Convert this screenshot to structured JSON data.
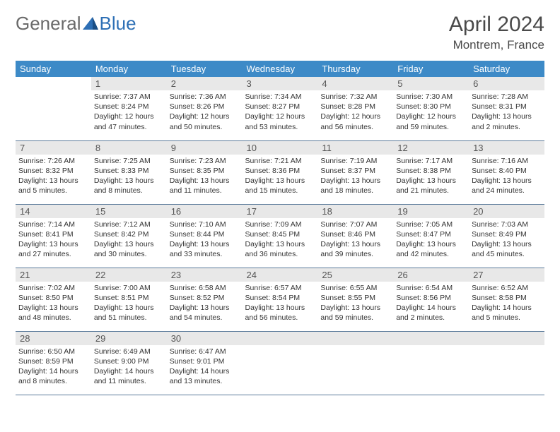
{
  "logo": {
    "part1": "General",
    "part2": "Blue"
  },
  "title": "April 2024",
  "location": "Montrem, France",
  "colors": {
    "header_bg": "#3d8ac7",
    "header_text": "#ffffff",
    "daynum_bg": "#e8e8e8",
    "row_border": "#5a7a9a",
    "text": "#333333",
    "title_color": "#4a4a4a",
    "logo_gray": "#6a6a6a",
    "logo_blue": "#2d6fb5"
  },
  "weekdays": [
    "Sunday",
    "Monday",
    "Tuesday",
    "Wednesday",
    "Thursday",
    "Friday",
    "Saturday"
  ],
  "layout": {
    "first_weekday_index": 1,
    "days_in_month": 30
  },
  "days": {
    "1": {
      "sunrise": "7:37 AM",
      "sunset": "8:24 PM",
      "daylight": "12 hours and 47 minutes."
    },
    "2": {
      "sunrise": "7:36 AM",
      "sunset": "8:26 PM",
      "daylight": "12 hours and 50 minutes."
    },
    "3": {
      "sunrise": "7:34 AM",
      "sunset": "8:27 PM",
      "daylight": "12 hours and 53 minutes."
    },
    "4": {
      "sunrise": "7:32 AM",
      "sunset": "8:28 PM",
      "daylight": "12 hours and 56 minutes."
    },
    "5": {
      "sunrise": "7:30 AM",
      "sunset": "8:30 PM",
      "daylight": "12 hours and 59 minutes."
    },
    "6": {
      "sunrise": "7:28 AM",
      "sunset": "8:31 PM",
      "daylight": "13 hours and 2 minutes."
    },
    "7": {
      "sunrise": "7:26 AM",
      "sunset": "8:32 PM",
      "daylight": "13 hours and 5 minutes."
    },
    "8": {
      "sunrise": "7:25 AM",
      "sunset": "8:33 PM",
      "daylight": "13 hours and 8 minutes."
    },
    "9": {
      "sunrise": "7:23 AM",
      "sunset": "8:35 PM",
      "daylight": "13 hours and 11 minutes."
    },
    "10": {
      "sunrise": "7:21 AM",
      "sunset": "8:36 PM",
      "daylight": "13 hours and 15 minutes."
    },
    "11": {
      "sunrise": "7:19 AM",
      "sunset": "8:37 PM",
      "daylight": "13 hours and 18 minutes."
    },
    "12": {
      "sunrise": "7:17 AM",
      "sunset": "8:38 PM",
      "daylight": "13 hours and 21 minutes."
    },
    "13": {
      "sunrise": "7:16 AM",
      "sunset": "8:40 PM",
      "daylight": "13 hours and 24 minutes."
    },
    "14": {
      "sunrise": "7:14 AM",
      "sunset": "8:41 PM",
      "daylight": "13 hours and 27 minutes."
    },
    "15": {
      "sunrise": "7:12 AM",
      "sunset": "8:42 PM",
      "daylight": "13 hours and 30 minutes."
    },
    "16": {
      "sunrise": "7:10 AM",
      "sunset": "8:44 PM",
      "daylight": "13 hours and 33 minutes."
    },
    "17": {
      "sunrise": "7:09 AM",
      "sunset": "8:45 PM",
      "daylight": "13 hours and 36 minutes."
    },
    "18": {
      "sunrise": "7:07 AM",
      "sunset": "8:46 PM",
      "daylight": "13 hours and 39 minutes."
    },
    "19": {
      "sunrise": "7:05 AM",
      "sunset": "8:47 PM",
      "daylight": "13 hours and 42 minutes."
    },
    "20": {
      "sunrise": "7:03 AM",
      "sunset": "8:49 PM",
      "daylight": "13 hours and 45 minutes."
    },
    "21": {
      "sunrise": "7:02 AM",
      "sunset": "8:50 PM",
      "daylight": "13 hours and 48 minutes."
    },
    "22": {
      "sunrise": "7:00 AM",
      "sunset": "8:51 PM",
      "daylight": "13 hours and 51 minutes."
    },
    "23": {
      "sunrise": "6:58 AM",
      "sunset": "8:52 PM",
      "daylight": "13 hours and 54 minutes."
    },
    "24": {
      "sunrise": "6:57 AM",
      "sunset": "8:54 PM",
      "daylight": "13 hours and 56 minutes."
    },
    "25": {
      "sunrise": "6:55 AM",
      "sunset": "8:55 PM",
      "daylight": "13 hours and 59 minutes."
    },
    "26": {
      "sunrise": "6:54 AM",
      "sunset": "8:56 PM",
      "daylight": "14 hours and 2 minutes."
    },
    "27": {
      "sunrise": "6:52 AM",
      "sunset": "8:58 PM",
      "daylight": "14 hours and 5 minutes."
    },
    "28": {
      "sunrise": "6:50 AM",
      "sunset": "8:59 PM",
      "daylight": "14 hours and 8 minutes."
    },
    "29": {
      "sunrise": "6:49 AM",
      "sunset": "9:00 PM",
      "daylight": "14 hours and 11 minutes."
    },
    "30": {
      "sunrise": "6:47 AM",
      "sunset": "9:01 PM",
      "daylight": "14 hours and 13 minutes."
    }
  },
  "labels": {
    "sunrise": "Sunrise: ",
    "sunset": "Sunset: ",
    "daylight": "Daylight: "
  }
}
